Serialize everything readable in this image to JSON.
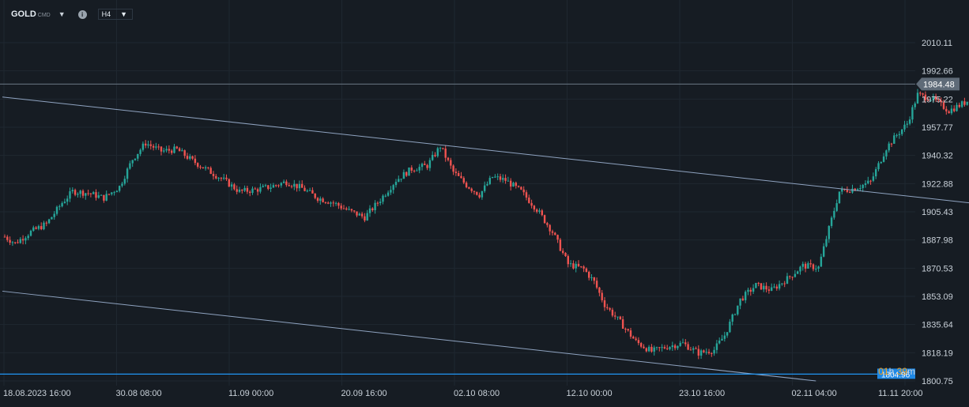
{
  "toolbar": {
    "symbol": "GOLD",
    "symbol_tag": "CMD",
    "timeframe": "H4",
    "info_icon": "i"
  },
  "countdown": {
    "hours": "01",
    "h_unit": "h",
    "minutes": "39",
    "m_unit": "m"
  },
  "colors": {
    "background": "#161c23",
    "up": "#26a69a",
    "down": "#ef5350",
    "trendline": "#2196f3",
    "channel": "#8fa3c0",
    "price_line": "#6b7785"
  },
  "chart_data": {
    "type": "candlestick",
    "symbol": "GOLD",
    "timeframe": "H4",
    "ylim": [
      1800.75,
      2010.11
    ],
    "y_ticks": [
      "2010.11",
      "1992.66",
      "1975.22",
      "1957.77",
      "1940.32",
      "1922.88",
      "1905.43",
      "1887.98",
      "1870.53",
      "1853.09",
      "1835.64",
      "1818.19",
      "1800.75"
    ],
    "x_ticks": [
      "18.08.2023  16:00",
      "30.08  08:00",
      "11.09  00:00",
      "20.09  16:00",
      "02.10  08:00",
      "12.10  00:00",
      "23.10  16:00",
      "02.11  04:00",
      "11.11  20:00"
    ],
    "current_price": "1984.48",
    "horizontal_level": "1804.96",
    "price_path": [
      [
        0,
        1890
      ],
      [
        4,
        1886
      ],
      [
        10,
        1893
      ],
      [
        16,
        1898
      ],
      [
        22,
        1911
      ],
      [
        26,
        1918
      ],
      [
        32,
        1917
      ],
      [
        38,
        1914
      ],
      [
        44,
        1921
      ],
      [
        49,
        1938
      ],
      [
        54,
        1948
      ],
      [
        60,
        1943
      ],
      [
        66,
        1944
      ],
      [
        72,
        1937
      ],
      [
        78,
        1931
      ],
      [
        84,
        1925
      ],
      [
        90,
        1918
      ],
      [
        96,
        1919
      ],
      [
        102,
        1921
      ],
      [
        108,
        1924
      ],
      [
        114,
        1920
      ],
      [
        120,
        1914
      ],
      [
        126,
        1911
      ],
      [
        132,
        1906
      ],
      [
        138,
        1902
      ],
      [
        144,
        1913
      ],
      [
        150,
        1925
      ],
      [
        156,
        1932
      ],
      [
        162,
        1934
      ],
      [
        167,
        1946
      ],
      [
        172,
        1930
      ],
      [
        177,
        1922
      ],
      [
        182,
        1916
      ],
      [
        187,
        1927
      ],
      [
        192,
        1925
      ],
      [
        198,
        1918
      ],
      [
        204,
        1907
      ],
      [
        210,
        1893
      ],
      [
        216,
        1873
      ],
      [
        222,
        1870
      ],
      [
        226,
        1862
      ],
      [
        230,
        1848
      ],
      [
        236,
        1837
      ],
      [
        242,
        1825
      ],
      [
        248,
        1819
      ],
      [
        254,
        1822
      ],
      [
        260,
        1824
      ],
      [
        266,
        1818
      ],
      [
        272,
        1820
      ],
      [
        276,
        1829
      ],
      [
        282,
        1851
      ],
      [
        288,
        1860
      ],
      [
        294,
        1857
      ],
      [
        300,
        1864
      ],
      [
        306,
        1872
      ],
      [
        312,
        1871
      ],
      [
        316,
        1895
      ],
      [
        320,
        1918
      ],
      [
        326,
        1920
      ],
      [
        332,
        1924
      ],
      [
        338,
        1945
      ],
      [
        342,
        1953
      ],
      [
        346,
        1960
      ],
      [
        350,
        1978
      ],
      [
        356,
        1975
      ],
      [
        362,
        1968
      ],
      [
        368,
        1973
      ],
      [
        374,
        1979
      ],
      [
        380,
        1984
      ],
      [
        386,
        1986
      ],
      [
        392,
        1997
      ],
      [
        398,
        1992
      ],
      [
        404,
        1982
      ],
      [
        410,
        1986
      ],
      [
        416,
        1988
      ],
      [
        422,
        1983
      ],
      [
        428,
        1987
      ],
      [
        431,
        1984
      ]
    ],
    "channel_lines": [
      {
        "x": [
          0,
          398
        ],
        "y": [
          1976.5,
          1906.0
        ]
      },
      {
        "x": [
          0,
          311
        ],
        "y": [
          1856.3,
          1800.75
        ]
      }
    ],
    "trendline": {
      "x": [
        370,
        483
      ],
      "y": [
        1949.5,
        1988.5
      ]
    }
  }
}
